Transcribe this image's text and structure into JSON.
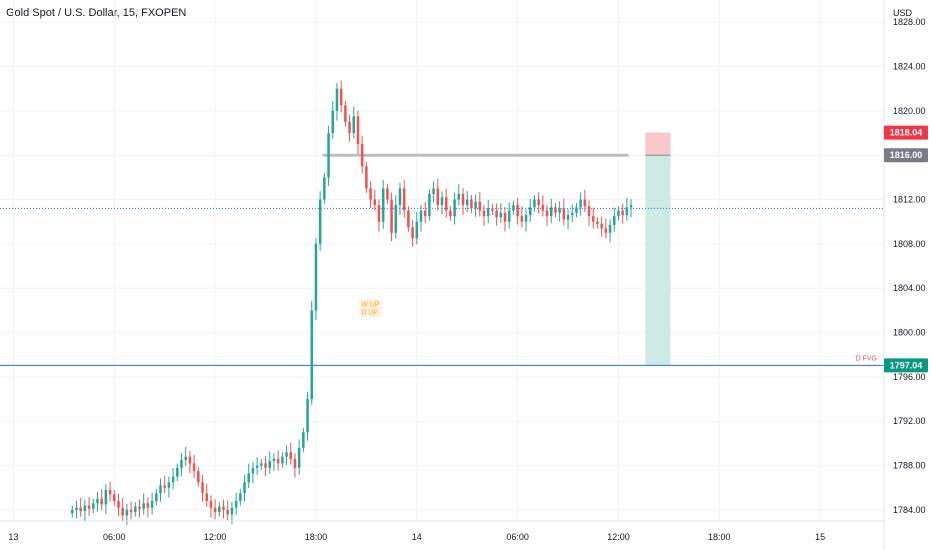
{
  "header": {
    "title": "Gold Spot / U.S. Dollar, 15, FXOPEN",
    "currency": "USD"
  },
  "colors": {
    "up": "#26a69a",
    "down": "#ef5350",
    "grid": "#f0f3fa",
    "current_line": "#2a6fdb",
    "zone_stop": "#f7c9cb",
    "zone_target": "#cdeae5",
    "entry_line": "#bdbdbd"
  },
  "chart_data": {
    "type": "candlestick",
    "ylim": [
      1783.0,
      1830.0
    ],
    "y_ticks": [
      1784,
      1788,
      1792,
      1796,
      1800,
      1804,
      1808,
      1812,
      1816,
      1820,
      1824,
      1828
    ],
    "y_tick_labels": [
      "1784.00",
      "1788.00",
      "1792.00",
      "1796.00",
      "1800.00",
      "1804.00",
      "1808.00",
      "1812.00",
      "1816.00",
      "1820.00",
      "1824.00",
      "1828.00"
    ],
    "x_ticks": [
      {
        "label": "13",
        "hour": 0
      },
      {
        "label": "06:00",
        "hour": 6
      },
      {
        "label": "12:00",
        "hour": 12
      },
      {
        "label": "18:00",
        "hour": 18
      },
      {
        "label": "14",
        "hour": 24
      },
      {
        "label": "06:00",
        "hour": 30
      },
      {
        "label": "12:00",
        "hour": 36
      },
      {
        "label": "18:00",
        "hour": 42
      },
      {
        "label": "15",
        "hour": 48
      }
    ],
    "xlim_hours": [
      -0.8,
      51.8
    ],
    "candles_start_hour": 3.5,
    "candle_interval_hours": 0.25,
    "closes": [
      1784.0,
      1784.2,
      1783.9,
      1784.4,
      1784.1,
      1784.6,
      1785.0,
      1784.5,
      1785.8,
      1785.4,
      1784.8,
      1784.2,
      1783.5,
      1784.0,
      1783.8,
      1784.3,
      1784.1,
      1784.6,
      1784.2,
      1784.8,
      1785.5,
      1786.2,
      1786.0,
      1786.5,
      1787.0,
      1787.8,
      1788.5,
      1788.8,
      1788.2,
      1787.5,
      1786.5,
      1785.5,
      1784.8,
      1784.2,
      1783.8,
      1784.3,
      1784.0,
      1783.6,
      1784.2,
      1784.8,
      1785.5,
      1786.5,
      1787.3,
      1787.8,
      1788.0,
      1788.2,
      1787.8,
      1788.4,
      1788.6,
      1788.2,
      1788.8,
      1789.2,
      1788.6,
      1787.8,
      1789.6,
      1791.0,
      1794.0,
      1802.0,
      1808.0,
      1812.0,
      1814.0,
      1818.0,
      1820.0,
      1822.0,
      1820.5,
      1819.0,
      1818.0,
      1819.5,
      1817.0,
      1815.0,
      1813.0,
      1812.0,
      1811.5,
      1810.0,
      1813.0,
      1812.0,
      1809.0,
      1811.5,
      1813.0,
      1811.0,
      1809.5,
      1808.5,
      1810.0,
      1811.0,
      1810.5,
      1812.5,
      1813.0,
      1811.5,
      1812.2,
      1811.0,
      1810.5,
      1812.0,
      1812.5,
      1811.5,
      1812.0,
      1811.2,
      1811.8,
      1811.0,
      1810.5,
      1811.2,
      1811.0,
      1810.4,
      1810.8,
      1810.0,
      1811.0,
      1811.5,
      1810.5,
      1810.0,
      1810.6,
      1811.3,
      1812.0,
      1811.5,
      1811.0,
      1810.5,
      1811.3,
      1810.8,
      1811.2,
      1810.2,
      1810.6,
      1810.8,
      1811.3,
      1812.0,
      1811.4,
      1810.5,
      1810.0,
      1809.8,
      1809.4,
      1809.0,
      1809.7,
      1810.5,
      1811.0,
      1810.6,
      1811.3,
      1811.5
    ],
    "entry_level": 1816.0,
    "stop_level": 1818.04,
    "target_level": 1797.04,
    "current_price": 1811.2,
    "entry_line_hours": [
      18.4,
      36.6
    ],
    "zone_hours": [
      37.6,
      39.1
    ],
    "ann_x_hour": 20.7,
    "annotations": {
      "w_up": "W UP",
      "d_up": "D UP",
      "d_fvg": "D FVG"
    },
    "badges": {
      "stop": "1818.04",
      "entry": "1816.00",
      "target": "1797.04"
    }
  }
}
